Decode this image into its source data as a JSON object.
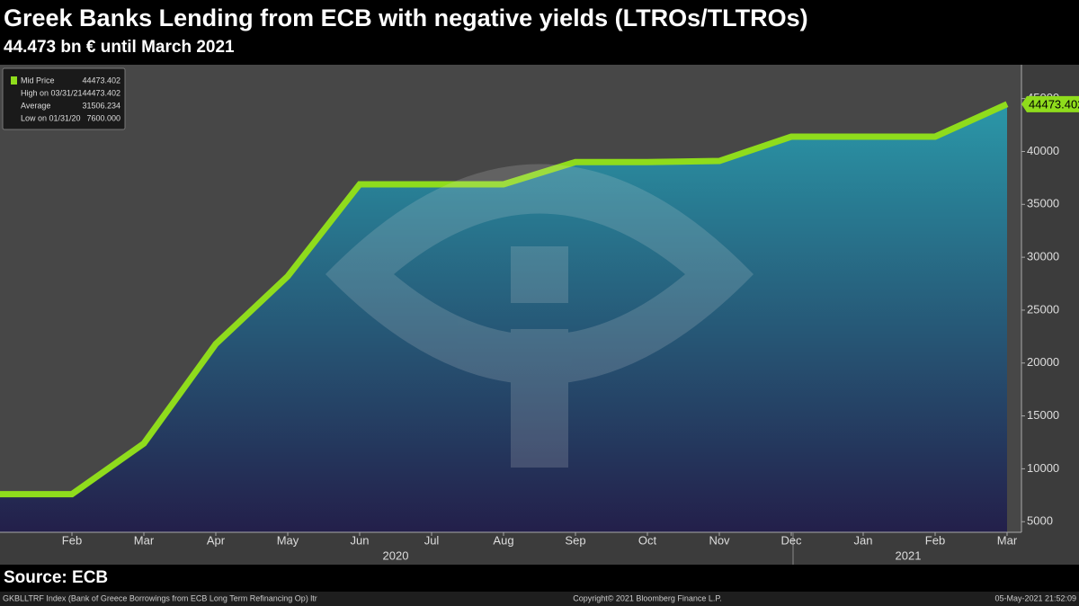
{
  "chart_data": {
    "type": "area-line",
    "title": "Greek Banks Lending from ECB with negative yields (LTROs/TLTROs)",
    "subtitle": "44.473 bn € until March 2021",
    "source": "Source: ECB",
    "footer_left": "GKBLLTRF Index (Bank of Greece Borrowings from ECB Long Term Refinancing Op) ltr",
    "footer_center": "Copyright© 2021 Bloomberg Finance L.P.",
    "footer_right": "05-May-2021 21:52:09",
    "categories": [
      null,
      "Feb",
      "Mar",
      "Apr",
      "May",
      "Jun",
      "Jul",
      "Aug",
      "Sep",
      "Oct",
      "Nov",
      "Dec",
      "Jan",
      "Feb",
      "Mar"
    ],
    "year_labels": [
      "2020",
      "2021"
    ],
    "series": [
      {
        "name": "Mid Price",
        "color": "#8fdc1c",
        "values": [
          7600,
          7600,
          12400,
          21800,
          28200,
          36900,
          36900,
          36900,
          39000,
          39000,
          39100,
          41400,
          41400,
          41400,
          44473.402
        ]
      }
    ],
    "legend_stats": [
      {
        "label": "Mid Price",
        "value": "44473.402"
      },
      {
        "label": "High on 03/31/21",
        "value": "44473.402"
      },
      {
        "label": "Average",
        "value": "31506.234"
      },
      {
        "label": "Low on 01/31/20",
        "value": "7600.000"
      }
    ],
    "ylim": [
      4000,
      48200
    ],
    "yticks": [
      5000,
      10000,
      15000,
      20000,
      25000,
      30000,
      35000,
      40000,
      45000
    ],
    "y_axis_side": "right"
  }
}
